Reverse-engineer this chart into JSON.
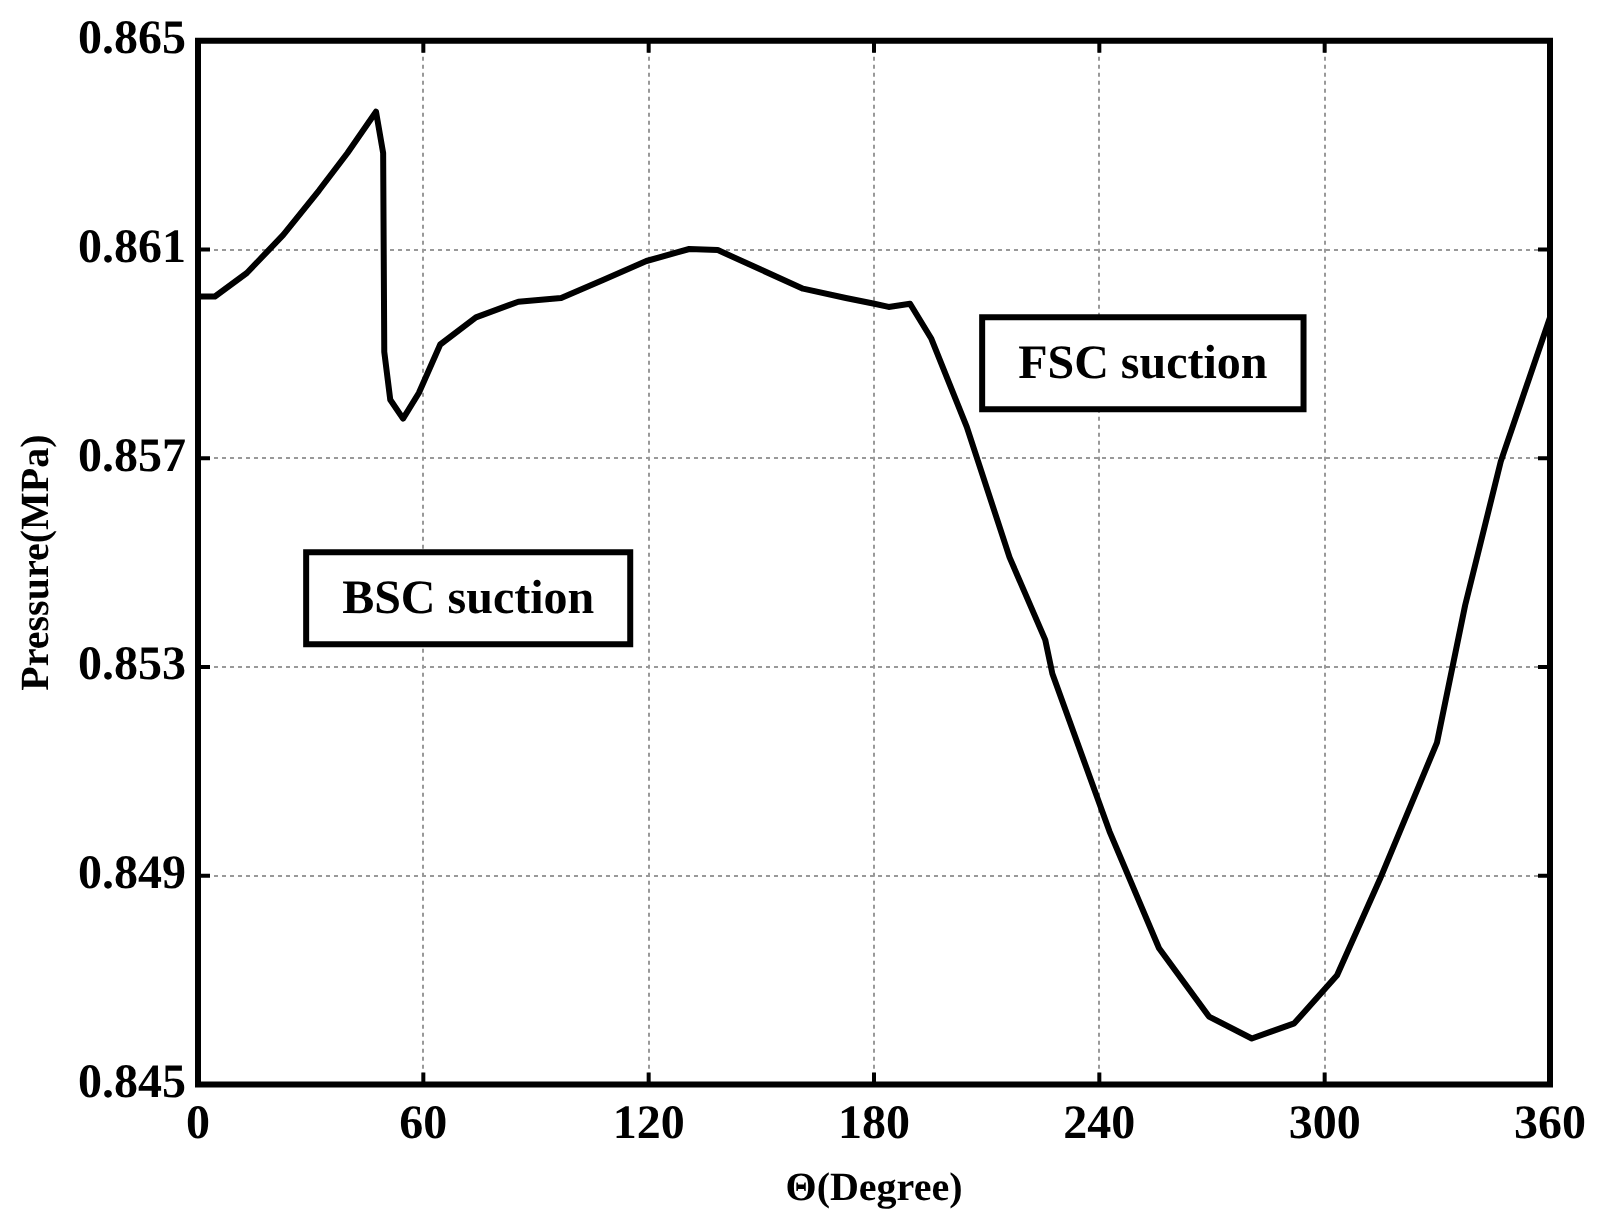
{
  "chart_data": {
    "type": "line",
    "xlabel": "Θ(Degree)",
    "ylabel": "Pressure(MPa)",
    "x": [
      0,
      4.5,
      13,
      22.7,
      32.2,
      39.8,
      47.4,
      49.3,
      49.6,
      51.2,
      54.6,
      58.8,
      64.5,
      74,
      85.3,
      96.7,
      108,
      119.4,
      130.8,
      138.4,
      149.7,
      161.1,
      172.5,
      180.1,
      183.9,
      189.6,
      195.2,
      204.7,
      216.1,
      225.6,
      227.5,
      242.7,
      255.9,
      269.2,
      280.6,
      291.9,
      303.3,
      314.7,
      329.9,
      337.4,
      346.9,
      360
    ],
    "series": [
      {
        "color": "#000000",
        "values": [
          0.8601,
          0.8601,
          0.86055,
          0.86128,
          0.86213,
          0.86285,
          0.86364,
          0.86285,
          0.85904,
          0.85812,
          0.85776,
          0.85825,
          0.85918,
          0.8597,
          0.86,
          0.86007,
          0.86042,
          0.86078,
          0.86101,
          0.86099,
          0.86062,
          0.86025,
          0.86007,
          0.85996,
          0.8599,
          0.85996,
          0.8593,
          0.8576,
          0.8551,
          0.85352,
          0.85287,
          0.84985,
          0.84761,
          0.8463,
          0.84588,
          0.84617,
          0.84709,
          0.84893,
          0.85155,
          0.85418,
          0.85694,
          0.8597
        ]
      }
    ],
    "xlim": [
      0,
      360
    ],
    "xticks": [
      0,
      60,
      120,
      180,
      240,
      300,
      360
    ],
    "ylim": [
      0.845,
      0.865
    ],
    "yticks": [
      0.845,
      0.849,
      0.853,
      0.857,
      0.861,
      0.865
    ],
    "grid": true,
    "legend": false,
    "marker": "none",
    "line_style": "solid",
    "annotations": [
      "BSC suction",
      "FSC suction"
    ]
  }
}
